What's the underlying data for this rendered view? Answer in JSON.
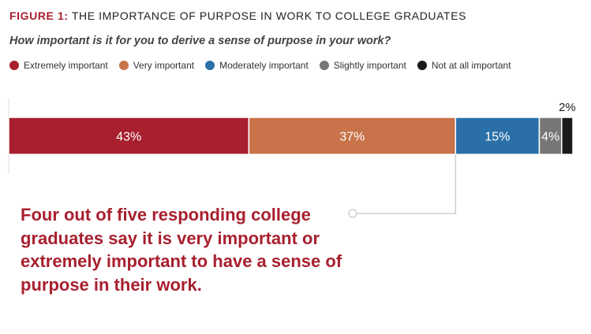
{
  "figure": {
    "label": "FIGURE 1:",
    "title": "THE IMPORTANCE OF PURPOSE IN WORK TO COLLEGE GRADUATES",
    "question": "How important is it for you to derive a sense of purpose in your work?"
  },
  "chart_data": {
    "type": "bar",
    "orientation": "horizontal-stacked",
    "categories": [
      ""
    ],
    "series": [
      {
        "name": "Extremely important",
        "values": [
          43
        ],
        "color": "#a8202f",
        "label": "43%"
      },
      {
        "name": "Very important",
        "values": [
          37
        ],
        "color": "#c8734a",
        "label": "37%"
      },
      {
        "name": "Moderately important",
        "values": [
          15
        ],
        "color": "#2a6fa8",
        "label": "15%"
      },
      {
        "name": "Slightly important",
        "values": [
          4
        ],
        "color": "#767676",
        "label": "4%"
      },
      {
        "name": "Not at all important",
        "values": [
          2
        ],
        "color": "#1a1a1a",
        "label": "2%"
      }
    ],
    "xlim": [
      0,
      101
    ],
    "legend": "top-left",
    "grid": false
  },
  "annotation": {
    "text": "Four out of five responding college graduates say it is very important or extremely important to have a sense of purpose in their work."
  },
  "colors": {
    "accent": "#a8202f",
    "callout_line": "#d0d0d0"
  }
}
